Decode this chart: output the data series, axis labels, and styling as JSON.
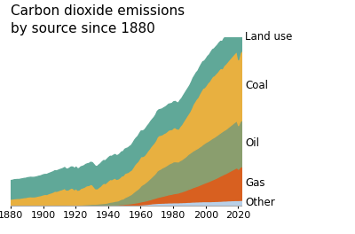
{
  "title": "Carbon dioxide emissions\nby source since 1880",
  "title_fontsize": 11,
  "years": [
    1880,
    1881,
    1882,
    1883,
    1884,
    1885,
    1886,
    1887,
    1888,
    1889,
    1890,
    1891,
    1892,
    1893,
    1894,
    1895,
    1896,
    1897,
    1898,
    1899,
    1900,
    1901,
    1902,
    1903,
    1904,
    1905,
    1906,
    1907,
    1908,
    1909,
    1910,
    1911,
    1912,
    1913,
    1914,
    1915,
    1916,
    1917,
    1918,
    1919,
    1920,
    1921,
    1922,
    1923,
    1924,
    1925,
    1926,
    1927,
    1928,
    1929,
    1930,
    1931,
    1932,
    1933,
    1934,
    1935,
    1936,
    1937,
    1938,
    1939,
    1940,
    1941,
    1942,
    1943,
    1944,
    1945,
    1946,
    1947,
    1948,
    1949,
    1950,
    1951,
    1952,
    1953,
    1954,
    1955,
    1956,
    1957,
    1958,
    1959,
    1960,
    1961,
    1962,
    1963,
    1964,
    1965,
    1966,
    1967,
    1968,
    1969,
    1970,
    1971,
    1972,
    1973,
    1974,
    1975,
    1976,
    1977,
    1978,
    1979,
    1980,
    1981,
    1982,
    1983,
    1984,
    1985,
    1986,
    1987,
    1988,
    1989,
    1990,
    1991,
    1992,
    1993,
    1994,
    1995,
    1996,
    1997,
    1998,
    1999,
    2000,
    2001,
    2002,
    2003,
    2004,
    2005,
    2006,
    2007,
    2008,
    2009,
    2010,
    2011,
    2012,
    2013,
    2014,
    2015,
    2016,
    2017,
    2018,
    2019,
    2020,
    2021,
    2022
  ],
  "other": [
    0.03,
    0.03,
    0.03,
    0.03,
    0.03,
    0.03,
    0.03,
    0.03,
    0.03,
    0.03,
    0.03,
    0.03,
    0.03,
    0.03,
    0.03,
    0.03,
    0.03,
    0.03,
    0.03,
    0.03,
    0.03,
    0.03,
    0.03,
    0.03,
    0.03,
    0.03,
    0.03,
    0.03,
    0.03,
    0.03,
    0.03,
    0.03,
    0.03,
    0.03,
    0.03,
    0.03,
    0.03,
    0.03,
    0.03,
    0.03,
    0.03,
    0.03,
    0.03,
    0.03,
    0.03,
    0.03,
    0.03,
    0.03,
    0.03,
    0.03,
    0.04,
    0.04,
    0.04,
    0.04,
    0.04,
    0.04,
    0.04,
    0.04,
    0.04,
    0.04,
    0.05,
    0.05,
    0.05,
    0.05,
    0.05,
    0.05,
    0.05,
    0.06,
    0.06,
    0.06,
    0.07,
    0.07,
    0.07,
    0.07,
    0.08,
    0.08,
    0.09,
    0.09,
    0.1,
    0.11,
    0.12,
    0.13,
    0.14,
    0.15,
    0.16,
    0.18,
    0.19,
    0.21,
    0.22,
    0.23,
    0.24,
    0.25,
    0.25,
    0.26,
    0.26,
    0.27,
    0.27,
    0.28,
    0.28,
    0.28,
    0.29,
    0.29,
    0.29,
    0.29,
    0.3,
    0.3,
    0.31,
    0.31,
    0.32,
    0.33,
    0.33,
    0.34,
    0.35,
    0.35,
    0.36,
    0.36,
    0.37,
    0.37,
    0.38,
    0.38,
    0.38,
    0.38,
    0.38,
    0.38,
    0.39,
    0.39,
    0.4,
    0.4,
    0.41,
    0.41,
    0.42,
    0.43,
    0.43,
    0.44,
    0.45,
    0.45,
    0.46,
    0.46,
    0.47,
    0.47,
    0.47,
    0.48,
    0.48
  ],
  "gas": [
    0.002,
    0.002,
    0.002,
    0.002,
    0.002,
    0.002,
    0.002,
    0.003,
    0.003,
    0.003,
    0.003,
    0.003,
    0.003,
    0.003,
    0.003,
    0.003,
    0.004,
    0.004,
    0.004,
    0.004,
    0.004,
    0.005,
    0.005,
    0.005,
    0.005,
    0.006,
    0.006,
    0.006,
    0.007,
    0.007,
    0.007,
    0.008,
    0.008,
    0.009,
    0.009,
    0.01,
    0.01,
    0.011,
    0.012,
    0.012,
    0.013,
    0.013,
    0.014,
    0.015,
    0.016,
    0.017,
    0.018,
    0.019,
    0.02,
    0.022,
    0.023,
    0.024,
    0.024,
    0.026,
    0.027,
    0.029,
    0.031,
    0.033,
    0.034,
    0.037,
    0.04,
    0.044,
    0.048,
    0.053,
    0.058,
    0.061,
    0.067,
    0.074,
    0.082,
    0.086,
    0.1,
    0.11,
    0.12,
    0.13,
    0.14,
    0.16,
    0.17,
    0.19,
    0.2,
    0.22,
    0.24,
    0.26,
    0.27,
    0.29,
    0.31,
    0.33,
    0.35,
    0.38,
    0.4,
    0.43,
    0.46,
    0.49,
    0.51,
    0.54,
    0.56,
    0.59,
    0.62,
    0.65,
    0.67,
    0.69,
    0.72,
    0.74,
    0.76,
    0.78,
    0.82,
    0.85,
    0.89,
    0.93,
    0.97,
    1.02,
    1.06,
    1.1,
    1.15,
    1.19,
    1.23,
    1.27,
    1.32,
    1.37,
    1.42,
    1.47,
    1.52,
    1.57,
    1.62,
    1.68,
    1.73,
    1.78,
    1.83,
    1.89,
    1.95,
    2.02,
    2.07,
    2.13,
    2.18,
    2.24,
    2.3,
    2.37,
    2.43,
    2.5,
    2.56,
    2.62,
    2.5,
    2.65,
    2.7
  ],
  "oil": [
    0.003,
    0.003,
    0.004,
    0.004,
    0.004,
    0.004,
    0.005,
    0.005,
    0.006,
    0.006,
    0.007,
    0.007,
    0.008,
    0.008,
    0.009,
    0.009,
    0.01,
    0.011,
    0.012,
    0.013,
    0.014,
    0.015,
    0.016,
    0.018,
    0.019,
    0.02,
    0.022,
    0.023,
    0.025,
    0.027,
    0.03,
    0.032,
    0.034,
    0.036,
    0.038,
    0.04,
    0.043,
    0.046,
    0.049,
    0.052,
    0.056,
    0.057,
    0.061,
    0.066,
    0.072,
    0.079,
    0.085,
    0.092,
    0.1,
    0.11,
    0.11,
    0.11,
    0.11,
    0.12,
    0.13,
    0.14,
    0.15,
    0.16,
    0.17,
    0.19,
    0.21,
    0.24,
    0.25,
    0.27,
    0.3,
    0.31,
    0.33,
    0.38,
    0.43,
    0.45,
    0.52,
    0.57,
    0.62,
    0.68,
    0.73,
    0.82,
    0.91,
    0.99,
    1.06,
    1.15,
    1.28,
    1.34,
    1.4,
    1.47,
    1.55,
    1.63,
    1.72,
    1.8,
    1.89,
    1.99,
    2.13,
    2.18,
    2.22,
    2.27,
    2.31,
    2.34,
    2.39,
    2.44,
    2.49,
    2.52,
    2.56,
    2.55,
    2.52,
    2.49,
    2.54,
    2.57,
    2.62,
    2.67,
    2.73,
    2.8,
    2.85,
    2.89,
    2.93,
    2.96,
    2.99,
    3.02,
    3.06,
    3.09,
    3.14,
    3.18,
    3.22,
    3.24,
    3.27,
    3.3,
    3.33,
    3.35,
    3.38,
    3.41,
    3.44,
    3.46,
    3.49,
    3.51,
    3.53,
    3.56,
    3.6,
    3.63,
    3.66,
    3.7,
    3.73,
    3.76,
    3.5,
    3.65,
    3.7
  ],
  "coal": [
    0.54,
    0.56,
    0.58,
    0.59,
    0.6,
    0.6,
    0.62,
    0.64,
    0.66,
    0.67,
    0.7,
    0.72,
    0.73,
    0.72,
    0.72,
    0.73,
    0.76,
    0.79,
    0.81,
    0.85,
    0.89,
    0.91,
    0.9,
    0.96,
    1.0,
    1.04,
    1.09,
    1.16,
    1.14,
    1.18,
    1.23,
    1.26,
    1.31,
    1.37,
    1.24,
    1.23,
    1.31,
    1.38,
    1.36,
    1.24,
    1.34,
    1.19,
    1.22,
    1.33,
    1.36,
    1.4,
    1.48,
    1.52,
    1.53,
    1.6,
    1.56,
    1.4,
    1.24,
    1.22,
    1.32,
    1.4,
    1.53,
    1.62,
    1.58,
    1.67,
    1.76,
    1.82,
    1.79,
    1.84,
    1.86,
    1.74,
    1.75,
    1.78,
    1.86,
    1.86,
    1.94,
    1.93,
    1.91,
    1.94,
    1.95,
    2.03,
    2.13,
    2.19,
    2.22,
    2.31,
    2.35,
    2.26,
    2.25,
    2.31,
    2.39,
    2.43,
    2.5,
    2.53,
    2.56,
    2.62,
    2.72,
    2.75,
    2.72,
    2.67,
    2.7,
    2.69,
    2.71,
    2.74,
    2.7,
    2.67,
    2.72,
    2.74,
    2.65,
    2.63,
    2.74,
    2.83,
    2.95,
    3.06,
    3.16,
    3.23,
    3.34,
    3.52,
    3.73,
    3.87,
    4.0,
    4.08,
    4.25,
    4.4,
    4.51,
    4.48,
    4.55,
    4.68,
    4.73,
    4.85,
    4.95,
    4.95,
    5.01,
    5.05,
    5.13,
    5.17,
    5.05,
    5.2,
    5.25,
    5.3,
    5.35,
    5.4,
    5.45,
    5.49,
    5.53,
    5.57,
    5.28,
    5.5,
    5.57
  ],
  "land_use": [
    1.5,
    1.5,
    1.52,
    1.52,
    1.52,
    1.52,
    1.53,
    1.53,
    1.54,
    1.54,
    1.55,
    1.55,
    1.56,
    1.56,
    1.56,
    1.57,
    1.57,
    1.58,
    1.58,
    1.59,
    1.6,
    1.6,
    1.61,
    1.61,
    1.62,
    1.63,
    1.63,
    1.64,
    1.64,
    1.65,
    1.65,
    1.66,
    1.66,
    1.67,
    1.67,
    1.68,
    1.68,
    1.69,
    1.7,
    1.7,
    1.71,
    1.71,
    1.72,
    1.73,
    1.73,
    1.74,
    1.75,
    1.75,
    1.76,
    1.77,
    1.77,
    1.78,
    1.79,
    1.79,
    1.8,
    1.81,
    1.81,
    1.82,
    1.83,
    1.84,
    1.85,
    1.86,
    1.87,
    1.88,
    1.89,
    1.9,
    1.91,
    1.92,
    1.93,
    1.94,
    1.95,
    1.96,
    1.97,
    1.98,
    1.99,
    2.0,
    2.01,
    2.02,
    2.03,
    2.04,
    2.05,
    2.05,
    2.05,
    2.05,
    2.05,
    2.05,
    2.06,
    2.06,
    2.06,
    2.06,
    2.07,
    2.07,
    2.07,
    2.07,
    2.07,
    2.08,
    2.08,
    2.08,
    2.08,
    2.09,
    2.09,
    2.09,
    2.09,
    2.1,
    2.1,
    2.1,
    2.1,
    2.11,
    2.11,
    2.11,
    2.12,
    2.12,
    2.12,
    2.12,
    2.13,
    2.13,
    2.13,
    2.14,
    2.14,
    2.14,
    2.15,
    2.15,
    2.15,
    2.15,
    2.16,
    2.16,
    2.16,
    2.17,
    2.17,
    2.17,
    2.18,
    2.18,
    2.18,
    2.19,
    2.19,
    2.19,
    2.2,
    2.2,
    2.2,
    2.21,
    2.21,
    2.22,
    2.22
  ],
  "colors": {
    "other": "#b8d0e8",
    "gas": "#d86020",
    "oil": "#8a9e6e",
    "coal": "#e8b040",
    "land_use": "#60a898"
  },
  "xticks": [
    1880,
    1900,
    1920,
    1940,
    1960,
    1980,
    2000,
    2020
  ],
  "xlim": [
    1880,
    2022
  ],
  "ylim": [
    0,
    13.5
  ],
  "bg_color": "#ffffff"
}
